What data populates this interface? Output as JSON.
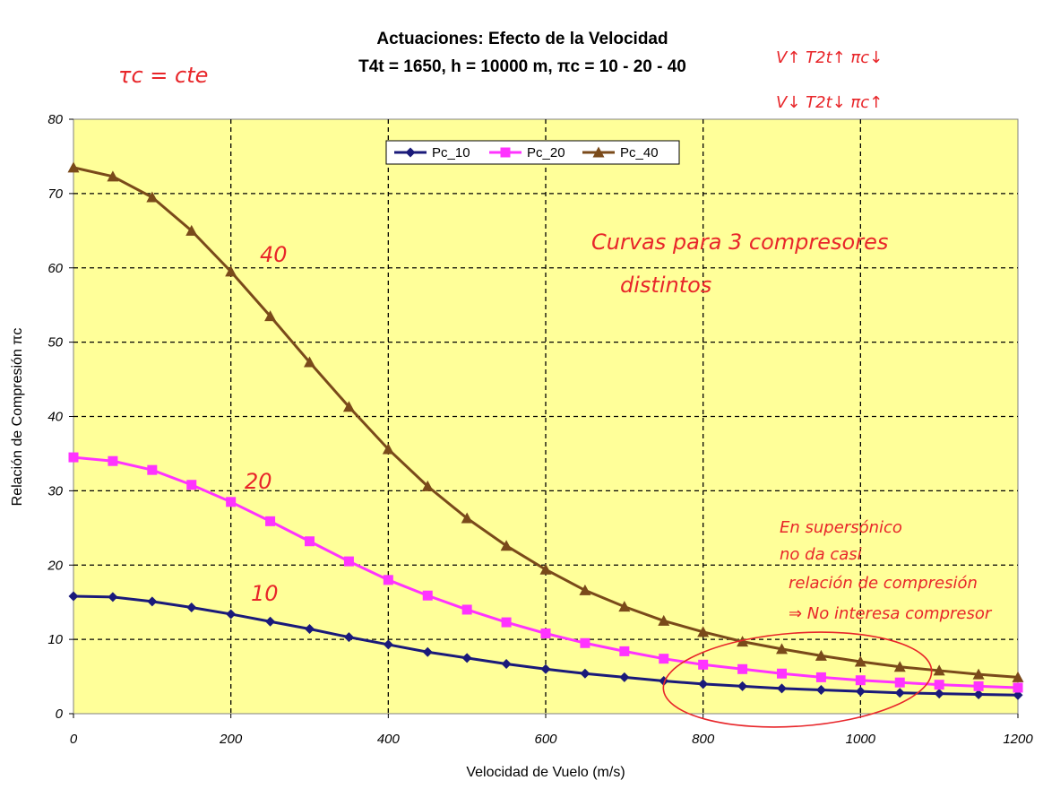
{
  "chart_data": {
    "type": "line",
    "title": "Actuaciones: Efecto de la Velocidad",
    "subtitle": "T4t = 1650, h = 10000 m, πc = 10 - 20 - 40",
    "xlabel": "Velocidad de Vuelo (m/s)",
    "ylabel": "Relación de Compresión πc",
    "xlim": [
      0,
      1200
    ],
    "ylim": [
      0,
      80
    ],
    "xticks": [
      "0",
      "200",
      "400",
      "600",
      "800",
      "1000",
      "1200"
    ],
    "yticks": [
      "0",
      "10",
      "20",
      "30",
      "40",
      "50",
      "60",
      "70",
      "80"
    ],
    "grid": true,
    "legend_position": "top-center",
    "plot_background": "#ffff99",
    "x": [
      0,
      50,
      100,
      150,
      200,
      250,
      300,
      350,
      400,
      450,
      500,
      550,
      600,
      650,
      700,
      750,
      800,
      850,
      900,
      950,
      1000,
      1050,
      1100,
      1150,
      1200
    ],
    "series": [
      {
        "name": "Pc_10",
        "color": "#1a1a7a",
        "marker": "diamond",
        "values": [
          15.8,
          15.7,
          15.1,
          14.3,
          13.4,
          12.4,
          11.4,
          10.3,
          9.3,
          8.3,
          7.5,
          6.7,
          6.0,
          5.4,
          4.9,
          4.4,
          4.0,
          3.7,
          3.4,
          3.2,
          3.0,
          2.8,
          2.7,
          2.6,
          2.5
        ]
      },
      {
        "name": "Pc_20",
        "color": "#ff33ff",
        "marker": "square",
        "values": [
          34.5,
          34.0,
          32.8,
          30.8,
          28.5,
          25.9,
          23.2,
          20.5,
          18.0,
          15.9,
          14.0,
          12.3,
          10.8,
          9.5,
          8.4,
          7.4,
          6.6,
          6.0,
          5.4,
          4.9,
          4.5,
          4.2,
          3.9,
          3.7,
          3.5
        ]
      },
      {
        "name": "Pc_40",
        "color": "#7a4a1a",
        "marker": "triangle",
        "values": [
          73.5,
          72.3,
          69.5,
          65.0,
          59.5,
          53.5,
          47.3,
          41.3,
          35.6,
          30.6,
          26.3,
          22.6,
          19.4,
          16.6,
          14.4,
          12.5,
          11.0,
          9.7,
          8.7,
          7.8,
          7.0,
          6.3,
          5.8,
          5.3,
          4.9
        ]
      }
    ]
  },
  "annotations": {
    "tc_cte": "τc = cte",
    "rule_1": "V↑  T2t↑  πc↓",
    "rule_2": "V↓  T2t↓  πc↑",
    "curvas_line1": "Curvas para 3 compresores",
    "curvas_line2": "distintos",
    "label_40": "40",
    "label_20": "20",
    "label_10": "10",
    "note_line1": "En supersónico",
    "note_line2": "no da casi",
    "note_line3": "relación de compresión",
    "note_line4": "⇒ No interesa compresor"
  }
}
